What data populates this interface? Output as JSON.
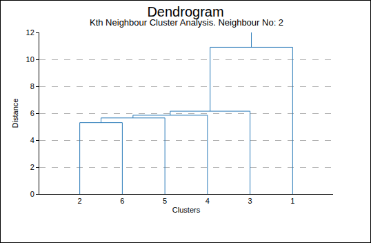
{
  "chart_data": {
    "type": "dendrogram",
    "title": "Dendrogram",
    "subtitle": "Kth Neighbour Cluster Analysis. Neighbour No: 2",
    "x_label": "Clusters",
    "y_label": "Distance",
    "categories": [
      "2",
      "6",
      "5",
      "4",
      "3",
      "1"
    ],
    "merges": [
      {
        "clusters": [
          "2",
          "6"
        ],
        "distance": 5.3
      },
      {
        "clusters": [
          "2",
          "5"
        ],
        "distance": 5.65
      },
      {
        "clusters": [
          "2",
          "4"
        ],
        "distance": 5.85
      },
      {
        "clusters": [
          "2",
          "3"
        ],
        "distance": 6.15
      },
      {
        "clusters": [
          "2",
          "1"
        ],
        "distance": 10.9
      }
    ],
    "ylim": [
      0,
      12
    ],
    "yticks": [
      0,
      2,
      4,
      6,
      8,
      10,
      12
    ],
    "grid": true,
    "color": "#2b7bb9"
  }
}
